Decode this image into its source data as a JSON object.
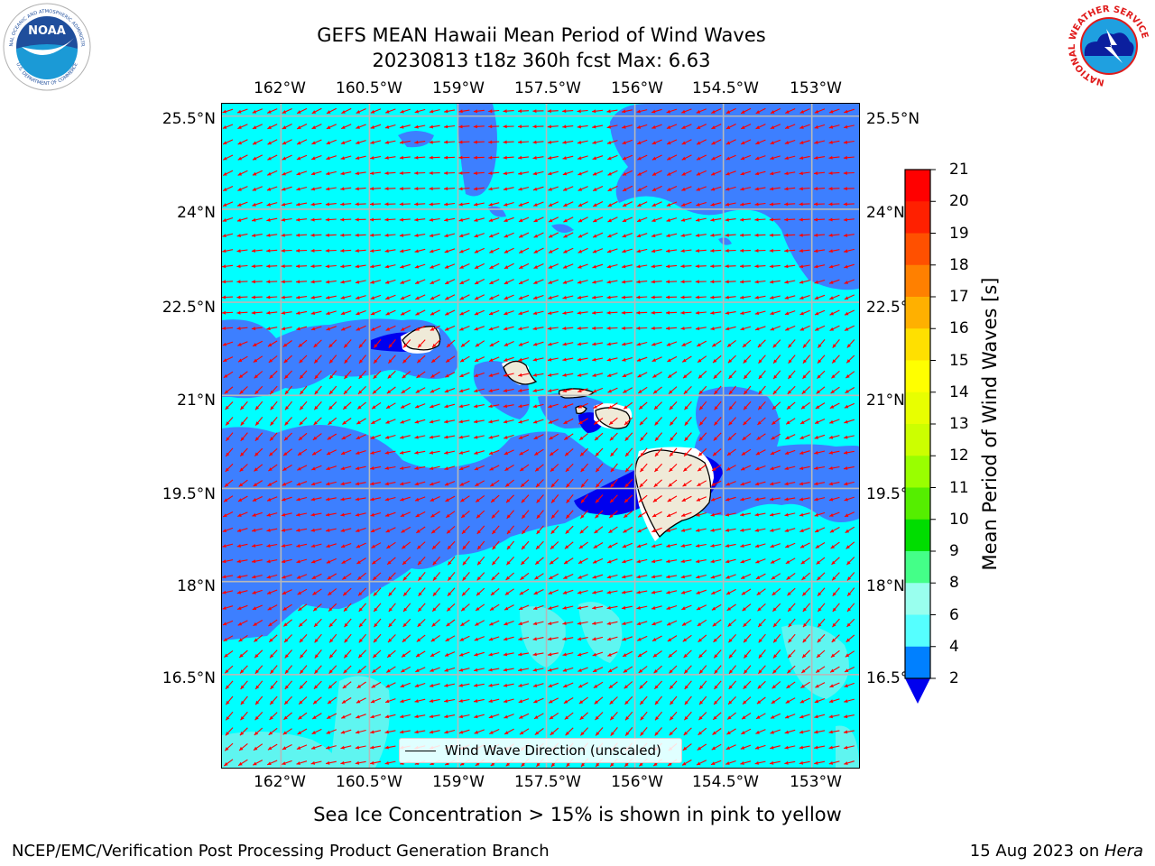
{
  "title": {
    "line1": "GEFS MEAN Hawaii Mean Period of Wind Waves",
    "line2": "20230813 t18z 360h fcst   Max: 6.63"
  },
  "logos": {
    "noaa_text": "NOAA",
    "noaa_ring_top": "NATIONAL OCEANIC AND ATMOSPHERIC ADMINISTRATION",
    "noaa_ring_bottom": "U.S. DEPARTMENT OF COMMERCE",
    "nws_ring": "NATIONAL WEATHER SERVICE"
  },
  "axes": {
    "lon_ticks": [
      "162°W",
      "160.5°W",
      "159°W",
      "157.5°W",
      "156°W",
      "154.5°W",
      "153°W"
    ],
    "lat_ticks": [
      "25.5°N",
      "24°N",
      "22.5°N",
      "21°N",
      "19.5°N",
      "18°N",
      "16.5°N"
    ],
    "lon_values": [
      -162,
      -160.5,
      -159,
      -157.5,
      -156,
      -154.5,
      -153
    ],
    "lat_values": [
      25.5,
      24,
      22.5,
      21,
      19.5,
      18,
      16.5
    ],
    "lon_range": [
      -163,
      -152.2
    ],
    "lat_range": [
      15,
      25.7
    ],
    "grid": true
  },
  "colorbar": {
    "title": "Mean Period of Wind Waves [s]",
    "labels": [
      "21",
      "20",
      "19",
      "18",
      "17",
      "16",
      "15",
      "14",
      "13",
      "12",
      "11",
      "10",
      "9",
      "8",
      "6",
      "4",
      "2"
    ],
    "colors": [
      "#ff0000",
      "#ff2000",
      "#ff5000",
      "#ff8000",
      "#ffb000",
      "#ffe000",
      "#ffff00",
      "#e8ff00",
      "#ccff00",
      "#99ff00",
      "#55ee00",
      "#00dd00",
      "#44ff88",
      "#99ffee",
      "#55ffff",
      "#00ffff",
      "#0080ff"
    ],
    "extend_color": "#0000ee"
  },
  "legend": {
    "label": "Wind Wave Direction (unscaled)"
  },
  "chart_data": {
    "type": "heatmap",
    "title": "GEFS MEAN Hawaii Mean Period of Wind Waves",
    "subtitle": "20230813 t18z 360h fcst   Max: 6.63",
    "variable": "Mean Period of Wind Waves [s]",
    "max": 6.63,
    "levels": [
      2,
      4,
      6,
      8,
      9,
      10,
      11,
      12,
      13,
      14,
      15,
      16,
      17,
      18,
      19,
      20,
      21
    ],
    "fill_colors": {
      "below_2": "#0000ee",
      "2_4": "#3d7fff",
      "4_6": "#00ffff",
      "6_8": "#55ffff"
    },
    "vectors": "Wind Wave Direction (unscaled)",
    "prevailing_direction": "northeast to southwest"
  },
  "subcaption": "Sea Ice Concentration > 15% is shown in pink to yellow",
  "footer": {
    "left": "NCEP/EMC/Verification Post Processing Product Generation Branch",
    "right_date": "15 Aug 2023 on ",
    "right_host": "Hera"
  }
}
